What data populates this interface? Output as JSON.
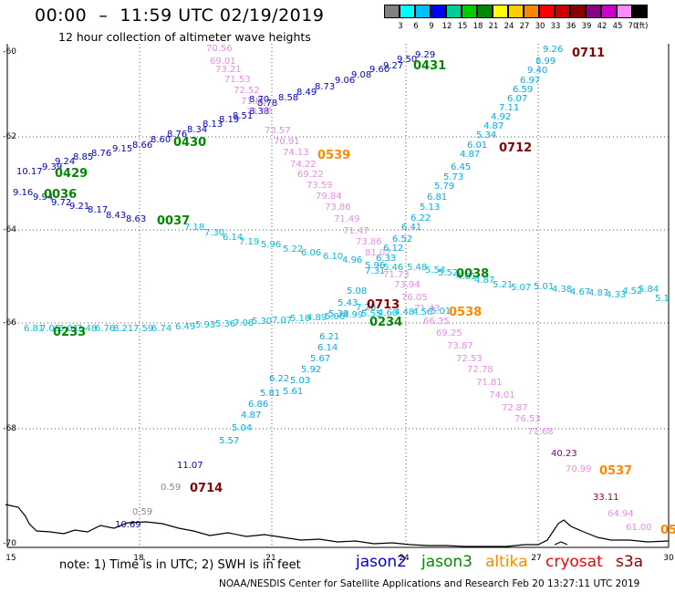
{
  "title": "00:00  –  11:59 UTC 02/19/2019",
  "subtitle": "12 hour collection of altimeter wave heights",
  "legend": {
    "colors": [
      "#808080",
      "#00ffff",
      "#00bfff",
      "#0000ff",
      "#00cc99",
      "#00cc00",
      "#008800",
      "#ffff00",
      "#ffcc00",
      "#ff8800",
      "#ff0000",
      "#cc0000",
      "#880000",
      "#880088",
      "#cc00cc",
      "#ff88ff",
      "#000000"
    ],
    "labels": [
      "3",
      "6",
      "9",
      "12",
      "15",
      "18",
      "21",
      "24",
      "27",
      "30",
      "33",
      "36",
      "39",
      "42",
      "45",
      "70",
      "(ft)"
    ]
  },
  "axes": {
    "x_ticks": [
      "15",
      "18",
      "21",
      "24",
      "27",
      "30"
    ],
    "y_ticks": [
      "-60",
      "-62",
      "-64",
      "-66",
      "-68",
      "-70"
    ]
  },
  "tracks": [
    {
      "color": "#0000cc",
      "values": [
        "9.29",
        "9.50",
        "9.27",
        "9.60",
        "9.08",
        "9.06",
        "8.73",
        "8.49",
        "8.58",
        "8.78",
        "8.70",
        "8.38",
        "8.51",
        "8.19",
        "8.13",
        "8.34",
        "8.76",
        "8.60",
        "8.66",
        "9.15",
        "8.76",
        "8.85",
        "9.24",
        "9.39",
        "10.17",
        "9.16",
        "9.94",
        "9.72",
        "9.21",
        "8.17",
        "8.43",
        "8.63"
      ]
    },
    {
      "color": "#ee88ee",
      "values": [
        "70.56",
        "69.01",
        "73.21",
        "71.53",
        "72.52",
        "71.50",
        "71.33",
        "73.57",
        "70.91",
        "74.13",
        "74.22",
        "69.22",
        "73.59",
        "79.84",
        "73.86",
        "71.49",
        "71.47",
        "73.86",
        "81.07",
        "71.73",
        "73.94",
        "76.05",
        "71.43",
        "66.35",
        "69.25",
        "73.87",
        "72.53",
        "72.78",
        "71.81",
        "74.01",
        "72.87",
        "76.53",
        "71.68",
        "70.99",
        "64.94",
        "61.00"
      ]
    },
    {
      "color": "#00aaee",
      "values": [
        "9.26",
        "8.99",
        "9.40",
        "6.97",
        "6.59",
        "6.07",
        "7.11",
        "4.92",
        "4.87",
        "5.34",
        "6.01",
        "4.87",
        "6.45",
        "5.73",
        "5.79",
        "6.81",
        "5.13",
        "6.22",
        "6.41",
        "6.52",
        "6.12",
        "6.33",
        "5.96",
        "7.31",
        "7.20",
        "5.08",
        "5.43",
        "5.39",
        "6.21",
        "6.14",
        "5.67",
        "5.92",
        "5.03",
        "5.61",
        "6.22",
        "5.81",
        "6.86",
        "4.87",
        "5.04",
        "5.57"
      ]
    },
    {
      "color": "#00bbdd",
      "values": [
        "7.18",
        "7.30",
        "6.14",
        "7.19",
        "5.96",
        "5.22",
        "6.06",
        "6.10",
        "4.96",
        "5.46",
        "5.48",
        "5.54",
        "5.52",
        "4.81",
        "4.87",
        "5.21",
        "5.07",
        "5.01",
        "4.38",
        "4.67",
        "4.87",
        "4.33",
        "4.52",
        "5.84",
        "5.1"
      ]
    },
    {
      "color": "#00bbdd",
      "values": [
        "6.81",
        "7.05",
        "6.01",
        "7.48",
        "6.76",
        "8.21",
        "7.59",
        "6.74",
        "6.49",
        "5.93",
        "5.36",
        "7.08",
        "5.30",
        "7.07",
        "5.10",
        "4.89",
        "5.06",
        "4.99",
        "5.55",
        "4.60",
        "4.48",
        "4.56",
        "5.01"
      ]
    },
    {
      "color": "#0000cc",
      "values": [
        "11.07",
        "10.69"
      ]
    },
    {
      "color": "#888888",
      "values": [
        "0.59",
        "0.59"
      ]
    },
    {
      "color": "#880088",
      "values": [
        "40.23"
      ]
    },
    {
      "color": "#aa0000",
      "values": [
        "33.11"
      ]
    }
  ],
  "times": [
    {
      "label": "0711",
      "color": "#880000"
    },
    {
      "label": "0431",
      "color": "#008800"
    },
    {
      "label": "0712",
      "color": "#880000"
    },
    {
      "label": "0430",
      "color": "#008800"
    },
    {
      "label": "0539",
      "color": "#ff8800"
    },
    {
      "label": "0429",
      "color": "#008800"
    },
    {
      "label": "0036",
      "color": "#008800"
    },
    {
      "label": "0037",
      "color": "#008800"
    },
    {
      "label": "0038",
      "color": "#008800"
    },
    {
      "label": "0713",
      "color": "#880000"
    },
    {
      "label": "0538",
      "color": "#ff8800"
    },
    {
      "label": "0234",
      "color": "#008800"
    },
    {
      "label": "0233",
      "color": "#008800"
    },
    {
      "label": "0714",
      "color": "#880000"
    },
    {
      "label": "0537",
      "color": "#ff8800"
    },
    {
      "label": "05",
      "color": "#ff8800"
    }
  ],
  "footer": {
    "note": "note:  1) Time is in UTC;  2) SWH is in feet",
    "satellites": [
      {
        "name": "jason2",
        "color": "#0000cc"
      },
      {
        "name": "jason3",
        "color": "#008800"
      },
      {
        "name": "altika",
        "color": "#ff8800"
      },
      {
        "name": "cryosat",
        "color": "#ff0000"
      },
      {
        "name": "s3a",
        "color": "#880000"
      }
    ],
    "credit": "NOAA/NESDIS Center for Satellite Applications and Research     Feb 20 13:27:11 UTC 2019"
  }
}
